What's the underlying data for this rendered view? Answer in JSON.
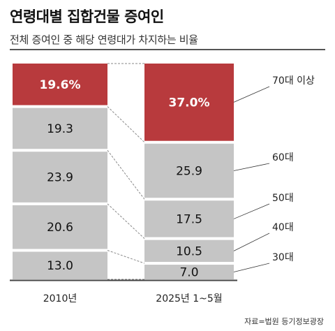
{
  "title": "연령대별 집합건물 증여인",
  "subtitle": "전체 증여인 중 해당 연령대가 차지하는 비율",
  "source": "자료=법원 등기정보광장",
  "colors": {
    "highlight": "#b83a3d",
    "segment": "#c5c5c5",
    "highlight_text": "#ffffff",
    "segment_text": "#111111",
    "connector": "#8a8a8a"
  },
  "chart_data": {
    "type": "bar",
    "stacked": true,
    "categories": [
      "2010년",
      "2025년 1~5월"
    ],
    "series": [
      {
        "name": "30대",
        "values": [
          13.0,
          7.0
        ],
        "labels": [
          "13.0",
          "7.0"
        ]
      },
      {
        "name": "40대",
        "values": [
          20.6,
          10.5
        ],
        "labels": [
          "20.6",
          "10.5"
        ]
      },
      {
        "name": "50대",
        "values": [
          23.9,
          17.5
        ],
        "labels": [
          "23.9",
          "17.5"
        ]
      },
      {
        "name": "60대",
        "values": [
          19.3,
          25.9
        ],
        "labels": [
          "19.3",
          "25.9"
        ]
      },
      {
        "name": "70대 이상",
        "values": [
          19.6,
          37.0
        ],
        "labels": [
          "19.6%",
          "37.0%"
        ]
      }
    ],
    "highlight_series": "70대 이상",
    "legend_placement": "right"
  }
}
